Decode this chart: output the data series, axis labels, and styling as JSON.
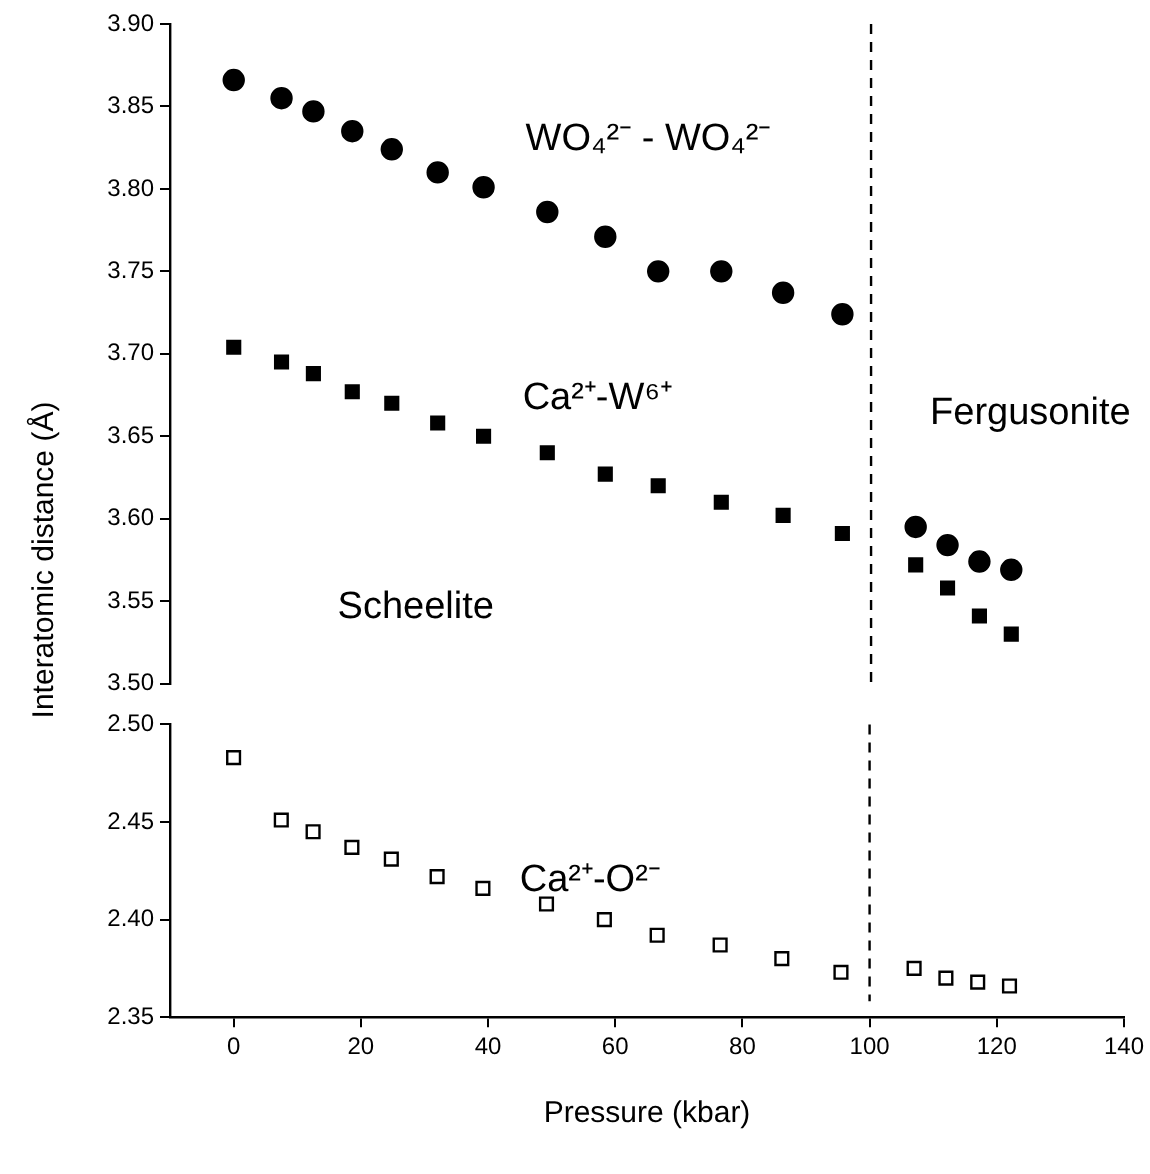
{
  "chart_data": [
    {
      "type": "scatter",
      "ylabel": "Interatomic distance (Å)",
      "xlim": [
        -10,
        140
      ],
      "xticks": [
        0,
        20,
        40,
        60,
        80,
        100,
        120,
        140
      ],
      "ylim": [
        3.5,
        3.9
      ],
      "yticks": [
        {
          "value": 3.5,
          "label": "3.50"
        },
        3.55,
        {
          "value": 3.6,
          "label": "3.60"
        },
        3.65,
        {
          "value": 3.7,
          "label": "3.70"
        },
        3.75,
        {
          "value": 3.8,
          "label": "3.80"
        },
        3.85,
        {
          "value": 3.9,
          "label": "3.90"
        }
      ],
      "tick_labels": "y",
      "grid": false,
      "legend": false,
      "x": [
        0,
        7.5,
        12.5,
        18.6,
        24.8,
        32,
        39.2,
        49.2,
        58.3,
        66.6,
        76.5,
        86.2,
        95.5,
        107,
        112,
        117,
        122
      ],
      "series": [
        {
          "color": "#000000",
          "marker": "circle",
          "values": [
            3.866,
            3.855,
            3.847,
            3.835,
            3.824,
            3.81,
            3.801,
            3.786,
            3.771,
            3.75,
            3.75,
            3.737,
            3.724,
            3.595,
            3.584,
            3.574,
            3.569
          ]
        },
        {
          "color": "#000000",
          "marker": "square",
          "values": [
            3.704,
            3.695,
            3.688,
            3.677,
            3.67,
            3.658,
            3.65,
            3.64,
            3.627,
            3.62,
            3.61,
            3.602,
            3.591,
            3.572,
            3.558,
            3.541,
            3.53
          ]
        }
      ],
      "ref_lines": [
        {
          "axis": "x",
          "value": 100,
          "color": "#000000",
          "line_style": "dashed"
        }
      ],
      "annotations": [
        "WO₄²⁻ - WO₄²⁻",
        "Ca²⁺-W⁶⁺",
        "Scheelite",
        "Fergusonite"
      ]
    },
    {
      "type": "scatter",
      "xlabel": "Pressure (kbar)",
      "xlim": [
        -10,
        140
      ],
      "xticks": [
        0,
        20,
        40,
        60,
        80,
        100,
        120,
        140
      ],
      "ylim": [
        2.35,
        2.5
      ],
      "yticks": [
        2.35,
        {
          "value": 2.4,
          "label": "2.40"
        },
        2.45,
        {
          "value": 2.5,
          "label": "2.50"
        }
      ],
      "grid": false,
      "legend": false,
      "x": [
        0,
        7.5,
        12.5,
        18.6,
        24.8,
        32,
        39.2,
        49.2,
        58.3,
        66.6,
        76.5,
        86.2,
        95.5,
        107,
        112,
        117,
        122
      ],
      "series": [
        {
          "color": "#000000",
          "marker": "square",
          "values": [
            2.483,
            2.451,
            2.445,
            2.437,
            2.431,
            2.422,
            2.416,
            2.408,
            2.4,
            2.392,
            2.387,
            2.38,
            2.373,
            2.375,
            2.37,
            2.368,
            2.366
          ]
        }
      ],
      "ref_lines": [
        {
          "axis": "x",
          "value": 100,
          "color": "#000000",
          "line_style": "dashed"
        }
      ],
      "annotations": [
        "Ca²⁺-O²⁻"
      ]
    }
  ]
}
